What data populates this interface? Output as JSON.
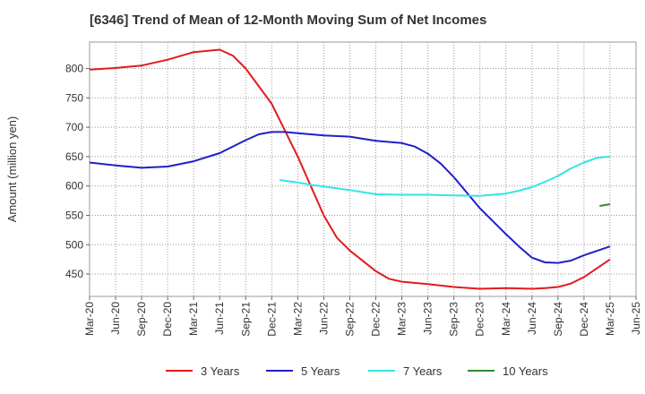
{
  "chart_data": {
    "type": "line",
    "title": "[6346]  Trend of Mean of 12-Month Moving Sum of Net Incomes",
    "ylabel": "Amount (million yen)",
    "xlabel": "",
    "ylim": [
      412,
      845
    ],
    "yticks": [
      450,
      500,
      550,
      600,
      650,
      700,
      750,
      800
    ],
    "xticks": [
      "Mar-20",
      "Jun-20",
      "Sep-20",
      "Dec-20",
      "Mar-21",
      "Jun-21",
      "Sep-21",
      "Dec-21",
      "Mar-22",
      "Jun-22",
      "Sep-22",
      "Dec-22",
      "Mar-23",
      "Jun-23",
      "Sep-23",
      "Dec-23",
      "Mar-24",
      "Jun-24",
      "Sep-24",
      "Dec-24",
      "Mar-25",
      "Jun-25"
    ],
    "grid": true,
    "legend_position": "bottom",
    "series": [
      {
        "name": "3 Years",
        "color": "#e31a1c",
        "points": [
          [
            0,
            798
          ],
          [
            1,
            801
          ],
          [
            2,
            805
          ],
          [
            3,
            815
          ],
          [
            4,
            828
          ],
          [
            5,
            832
          ],
          [
            5.5,
            822
          ],
          [
            6,
            800
          ],
          [
            7,
            740
          ],
          [
            8,
            650
          ],
          [
            8.5,
            600
          ],
          [
            9,
            550
          ],
          [
            9.5,
            512
          ],
          [
            10,
            490
          ],
          [
            11,
            455
          ],
          [
            11.5,
            442
          ],
          [
            12,
            437
          ],
          [
            13,
            433
          ],
          [
            14,
            428
          ],
          [
            15,
            425
          ],
          [
            16,
            426
          ],
          [
            17,
            425
          ],
          [
            17.5,
            426
          ],
          [
            18,
            428
          ],
          [
            18.5,
            434
          ],
          [
            19,
            445
          ],
          [
            20,
            475
          ]
        ]
      },
      {
        "name": "5 Years",
        "color": "#1f1fc8",
        "points": [
          [
            0,
            640
          ],
          [
            1,
            635
          ],
          [
            2,
            631
          ],
          [
            3,
            633
          ],
          [
            4,
            642
          ],
          [
            5,
            656
          ],
          [
            6,
            678
          ],
          [
            6.5,
            688
          ],
          [
            7,
            692
          ],
          [
            7.5,
            692
          ],
          [
            8,
            690
          ],
          [
            9,
            686
          ],
          [
            10,
            684
          ],
          [
            11,
            677
          ],
          [
            11.5,
            675
          ],
          [
            12,
            673
          ],
          [
            12.5,
            667
          ],
          [
            13,
            655
          ],
          [
            13.5,
            638
          ],
          [
            14,
            615
          ],
          [
            15,
            562
          ],
          [
            16,
            518
          ],
          [
            16.5,
            497
          ],
          [
            17,
            478
          ],
          [
            17.5,
            470
          ],
          [
            18,
            469
          ],
          [
            18.5,
            473
          ],
          [
            19,
            482
          ],
          [
            20,
            497
          ]
        ]
      },
      {
        "name": "7 Years",
        "color": "#33e5e5",
        "points": [
          [
            7.3,
            610
          ],
          [
            8,
            606
          ],
          [
            8.5,
            602
          ],
          [
            9,
            599
          ],
          [
            10,
            593
          ],
          [
            11,
            586
          ],
          [
            12,
            585
          ],
          [
            13,
            585
          ],
          [
            14,
            584
          ],
          [
            15,
            583
          ],
          [
            16,
            587
          ],
          [
            16.5,
            592
          ],
          [
            17,
            598
          ],
          [
            17.5,
            607
          ],
          [
            18,
            617
          ],
          [
            18.5,
            630
          ],
          [
            19,
            640
          ],
          [
            19.5,
            648
          ],
          [
            20,
            650
          ]
        ]
      },
      {
        "name": "10 Years",
        "color": "#2e8b2e",
        "points": [
          [
            19.6,
            566
          ],
          [
            20,
            569
          ]
        ]
      }
    ]
  }
}
